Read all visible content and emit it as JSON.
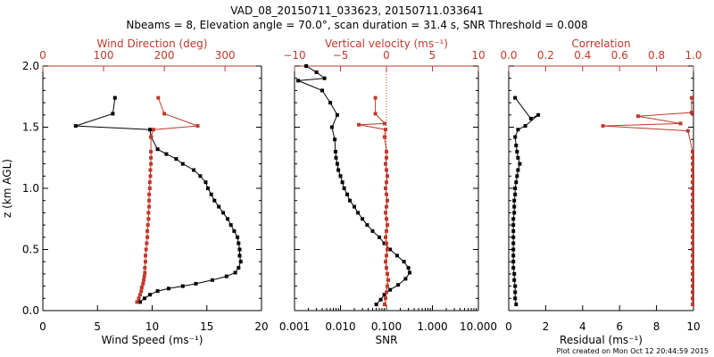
{
  "title_line1": "VAD_08_20150711_033623, 20150711.033641",
  "title_line2": "Nbeams = 8, Elevation angle = 70.0°, scan duration = 31.4 s, SNR Threshold = 0.008",
  "footer": "Plot created on Mon Oct 12 20:44:59 2015",
  "colors": {
    "black": "#000000",
    "red": "#c0392b"
  },
  "chart_data": [
    {
      "type": "scatter",
      "ylabel": "z (km AGL)",
      "ylim": [
        0,
        2
      ],
      "yticks": [
        "0.0",
        "0.5",
        "1.0",
        "1.5",
        "2.0"
      ],
      "bottom_axis": {
        "label": "Wind Speed (ms⁻¹)",
        "range": [
          0,
          20
        ],
        "ticks": [
          "0",
          "5",
          "10",
          "15",
          "20"
        ],
        "color": "#000000"
      },
      "top_axis": {
        "label": "Wind Direction (deg)",
        "range": [
          0,
          360
        ],
        "ticks": [
          "0",
          "100",
          "200",
          "300"
        ],
        "tick_values": [
          0,
          100,
          200,
          300
        ],
        "color": "#c0392b"
      },
      "series": [
        {
          "axis": "bottom",
          "color": "#000000",
          "points": [
            [
              8.9,
              0.07
            ],
            [
              9.3,
              0.1
            ],
            [
              9.8,
              0.13
            ],
            [
              10.5,
              0.16
            ],
            [
              11.5,
              0.18
            ],
            [
              12.8,
              0.2
            ],
            [
              14.0,
              0.22
            ],
            [
              15.5,
              0.25
            ],
            [
              16.8,
              0.28
            ],
            [
              17.6,
              0.31
            ],
            [
              17.9,
              0.35
            ],
            [
              18.1,
              0.4
            ],
            [
              18.0,
              0.45
            ],
            [
              18.0,
              0.5
            ],
            [
              17.9,
              0.55
            ],
            [
              17.8,
              0.6
            ],
            [
              17.5,
              0.65
            ],
            [
              17.2,
              0.7
            ],
            [
              16.9,
              0.75
            ],
            [
              16.5,
              0.8
            ],
            [
              16.1,
              0.85
            ],
            [
              15.7,
              0.9
            ],
            [
              15.4,
              0.95
            ],
            [
              15.1,
              1.0
            ],
            [
              14.9,
              1.05
            ],
            [
              14.4,
              1.1
            ],
            [
              13.8,
              1.15
            ],
            [
              12.8,
              1.2
            ],
            [
              12.2,
              1.24
            ],
            [
              11.3,
              1.28
            ],
            [
              10.5,
              1.32
            ],
            [
              9.9,
              1.42
            ],
            [
              9.8,
              1.48
            ],
            [
              3.0,
              1.51
            ],
            [
              6.4,
              1.61
            ],
            [
              6.6,
              1.74
            ]
          ]
        },
        {
          "axis": "top",
          "color": "#c0392b",
          "points": [
            [
              155,
              0.07
            ],
            [
              158,
              0.1
            ],
            [
              160,
              0.13
            ],
            [
              162,
              0.16
            ],
            [
              163,
              0.19
            ],
            [
              165,
              0.22
            ],
            [
              166,
              0.25
            ],
            [
              167,
              0.28
            ],
            [
              168,
              0.31
            ],
            [
              168,
              0.35
            ],
            [
              169,
              0.4
            ],
            [
              169,
              0.45
            ],
            [
              170,
              0.5
            ],
            [
              171,
              0.55
            ],
            [
              172,
              0.6
            ],
            [
              172,
              0.65
            ],
            [
              173,
              0.7
            ],
            [
              174,
              0.75
            ],
            [
              174,
              0.8
            ],
            [
              175,
              0.85
            ],
            [
              175,
              0.9
            ],
            [
              175,
              0.95
            ],
            [
              176,
              1.0
            ],
            [
              176,
              1.05
            ],
            [
              177,
              1.1
            ],
            [
              177,
              1.15
            ],
            [
              178,
              1.2
            ],
            [
              178,
              1.25
            ],
            [
              178,
              1.3
            ],
            [
              178,
              1.42
            ],
            [
              182,
              1.48
            ],
            [
              255,
              1.51
            ],
            [
              200,
              1.61
            ],
            [
              190,
              1.74
            ]
          ]
        }
      ]
    },
    {
      "type": "scatter",
      "ylim": [
        0,
        2
      ],
      "bottom_axis": {
        "label": "SNR",
        "scale": "log",
        "range": [
          0.001,
          10
        ],
        "ticks": [
          "0.001",
          "0.010",
          "0.100",
          "1.000",
          "10.000"
        ],
        "tick_values": [
          0.001,
          0.01,
          0.1,
          1,
          10
        ],
        "color": "#000000"
      },
      "top_axis": {
        "label": "Vertical velocity (ms⁻¹)",
        "range": [
          -10,
          10
        ],
        "ticks": [
          "−10",
          "−5",
          "0",
          "5",
          "10"
        ],
        "tick_values": [
          -10,
          -5,
          0,
          5,
          10
        ],
        "color": "#c0392b"
      },
      "series": [
        {
          "axis": "bottom",
          "color": "#000000",
          "points": [
            [
              0.06,
              0.05
            ],
            [
              0.075,
              0.09
            ],
            [
              0.09,
              0.13
            ],
            [
              0.12,
              0.17
            ],
            [
              0.18,
              0.21
            ],
            [
              0.26,
              0.26
            ],
            [
              0.32,
              0.31
            ],
            [
              0.3,
              0.35
            ],
            [
              0.24,
              0.4
            ],
            [
              0.17,
              0.45
            ],
            [
              0.12,
              0.5
            ],
            [
              0.09,
              0.55
            ],
            [
              0.07,
              0.6
            ],
            [
              0.05,
              0.65
            ],
            [
              0.038,
              0.7
            ],
            [
              0.03,
              0.75
            ],
            [
              0.024,
              0.8
            ],
            [
              0.02,
              0.85
            ],
            [
              0.016,
              0.9
            ],
            [
              0.014,
              0.95
            ],
            [
              0.012,
              1.0
            ],
            [
              0.011,
              1.05
            ],
            [
              0.01,
              1.1
            ],
            [
              0.009,
              1.15
            ],
            [
              0.0085,
              1.2
            ],
            [
              0.008,
              1.25
            ],
            [
              0.0078,
              1.3
            ],
            [
              0.0075,
              1.4
            ],
            [
              0.0065,
              1.5
            ],
            [
              0.0085,
              1.6
            ],
            [
              0.006,
              1.7
            ],
            [
              0.004,
              1.8
            ],
            [
              0.0012,
              1.88
            ],
            [
              0.0045,
              1.9
            ],
            [
              0.003,
              1.95
            ],
            [
              0.0018,
              2.0
            ]
          ]
        },
        {
          "axis": "top",
          "color": "#c0392b",
          "points": [
            [
              -0.2,
              0.05
            ],
            [
              -0.1,
              0.1
            ],
            [
              0.0,
              0.15
            ],
            [
              0.1,
              0.2
            ],
            [
              0.2,
              0.25
            ],
            [
              0.1,
              0.3
            ],
            [
              0.0,
              0.35
            ],
            [
              -0.1,
              0.4
            ],
            [
              0.0,
              0.45
            ],
            [
              0.1,
              0.5
            ],
            [
              0.0,
              0.55
            ],
            [
              -0.1,
              0.6
            ],
            [
              0.0,
              0.65
            ],
            [
              0.1,
              0.7
            ],
            [
              0.0,
              0.75
            ],
            [
              -0.1,
              0.8
            ],
            [
              0.0,
              0.85
            ],
            [
              0.1,
              0.9
            ],
            [
              0.0,
              0.95
            ],
            [
              -0.1,
              1.0
            ],
            [
              0.0,
              1.05
            ],
            [
              0.1,
              1.1
            ],
            [
              0.0,
              1.15
            ],
            [
              -0.1,
              1.2
            ],
            [
              0.0,
              1.25
            ],
            [
              0.0,
              1.3
            ],
            [
              -0.2,
              1.42
            ],
            [
              -0.1,
              1.48
            ],
            [
              -3.0,
              1.52
            ],
            [
              -0.2,
              1.53
            ],
            [
              -1.2,
              1.61
            ],
            [
              -1.2,
              1.74
            ]
          ]
        }
      ],
      "reference_line": {
        "axis": "top",
        "value": 0,
        "style": "dotted",
        "color": "#c0392b"
      }
    },
    {
      "type": "scatter",
      "ylim": [
        0,
        2
      ],
      "bottom_axis": {
        "label": "Residual (ms⁻¹)",
        "range": [
          0,
          10
        ],
        "ticks": [
          "0",
          "2",
          "4",
          "6",
          "8",
          "10"
        ],
        "color": "#000000"
      },
      "top_axis": {
        "label": "Correlation",
        "range": [
          0,
          1
        ],
        "ticks": [
          "0.0",
          "0.2",
          "0.4",
          "0.6",
          "0.8",
          "1.0"
        ],
        "tick_values": [
          0,
          0.2,
          0.4,
          0.6,
          0.8,
          1.0
        ],
        "color": "#c0392b"
      },
      "series": [
        {
          "axis": "bottom",
          "color": "#000000",
          "points": [
            [
              0.4,
              0.05
            ],
            [
              0.35,
              0.1
            ],
            [
              0.35,
              0.15
            ],
            [
              0.35,
              0.2
            ],
            [
              0.3,
              0.25
            ],
            [
              0.3,
              0.3
            ],
            [
              0.25,
              0.35
            ],
            [
              0.25,
              0.4
            ],
            [
              0.25,
              0.45
            ],
            [
              0.25,
              0.5
            ],
            [
              0.25,
              0.55
            ],
            [
              0.25,
              0.6
            ],
            [
              0.25,
              0.65
            ],
            [
              0.25,
              0.7
            ],
            [
              0.25,
              0.75
            ],
            [
              0.3,
              0.8
            ],
            [
              0.3,
              0.85
            ],
            [
              0.3,
              0.9
            ],
            [
              0.35,
              0.95
            ],
            [
              0.35,
              1.0
            ],
            [
              0.4,
              1.05
            ],
            [
              0.45,
              1.1
            ],
            [
              0.5,
              1.15
            ],
            [
              0.6,
              1.2
            ],
            [
              0.5,
              1.25
            ],
            [
              0.45,
              1.3
            ],
            [
              0.4,
              1.35
            ],
            [
              0.35,
              1.42
            ],
            [
              0.5,
              1.48
            ],
            [
              0.9,
              1.51
            ],
            [
              1.6,
              1.6
            ],
            [
              1.2,
              1.57
            ],
            [
              0.35,
              1.74
            ]
          ]
        },
        {
          "axis": "top",
          "color": "#c0392b",
          "points": [
            [
              0.995,
              0.05
            ],
            [
              0.995,
              0.1
            ],
            [
              0.995,
              0.15
            ],
            [
              0.995,
              0.2
            ],
            [
              0.995,
              0.25
            ],
            [
              0.995,
              0.3
            ],
            [
              0.995,
              0.35
            ],
            [
              0.995,
              0.4
            ],
            [
              0.995,
              0.45
            ],
            [
              0.995,
              0.5
            ],
            [
              0.995,
              0.55
            ],
            [
              0.995,
              0.6
            ],
            [
              0.995,
              0.65
            ],
            [
              0.995,
              0.7
            ],
            [
              0.995,
              0.75
            ],
            [
              0.995,
              0.8
            ],
            [
              0.995,
              0.85
            ],
            [
              0.995,
              0.9
            ],
            [
              0.995,
              0.95
            ],
            [
              0.995,
              1.0
            ],
            [
              0.995,
              1.05
            ],
            [
              0.995,
              1.1
            ],
            [
              0.995,
              1.15
            ],
            [
              0.995,
              1.2
            ],
            [
              0.995,
              1.25
            ],
            [
              0.995,
              1.3
            ],
            [
              0.97,
              1.47
            ],
            [
              0.51,
              1.51
            ],
            [
              0.93,
              1.53
            ],
            [
              0.7,
              1.59
            ],
            [
              0.99,
              1.62
            ],
            [
              0.99,
              1.74
            ]
          ]
        }
      ]
    }
  ]
}
